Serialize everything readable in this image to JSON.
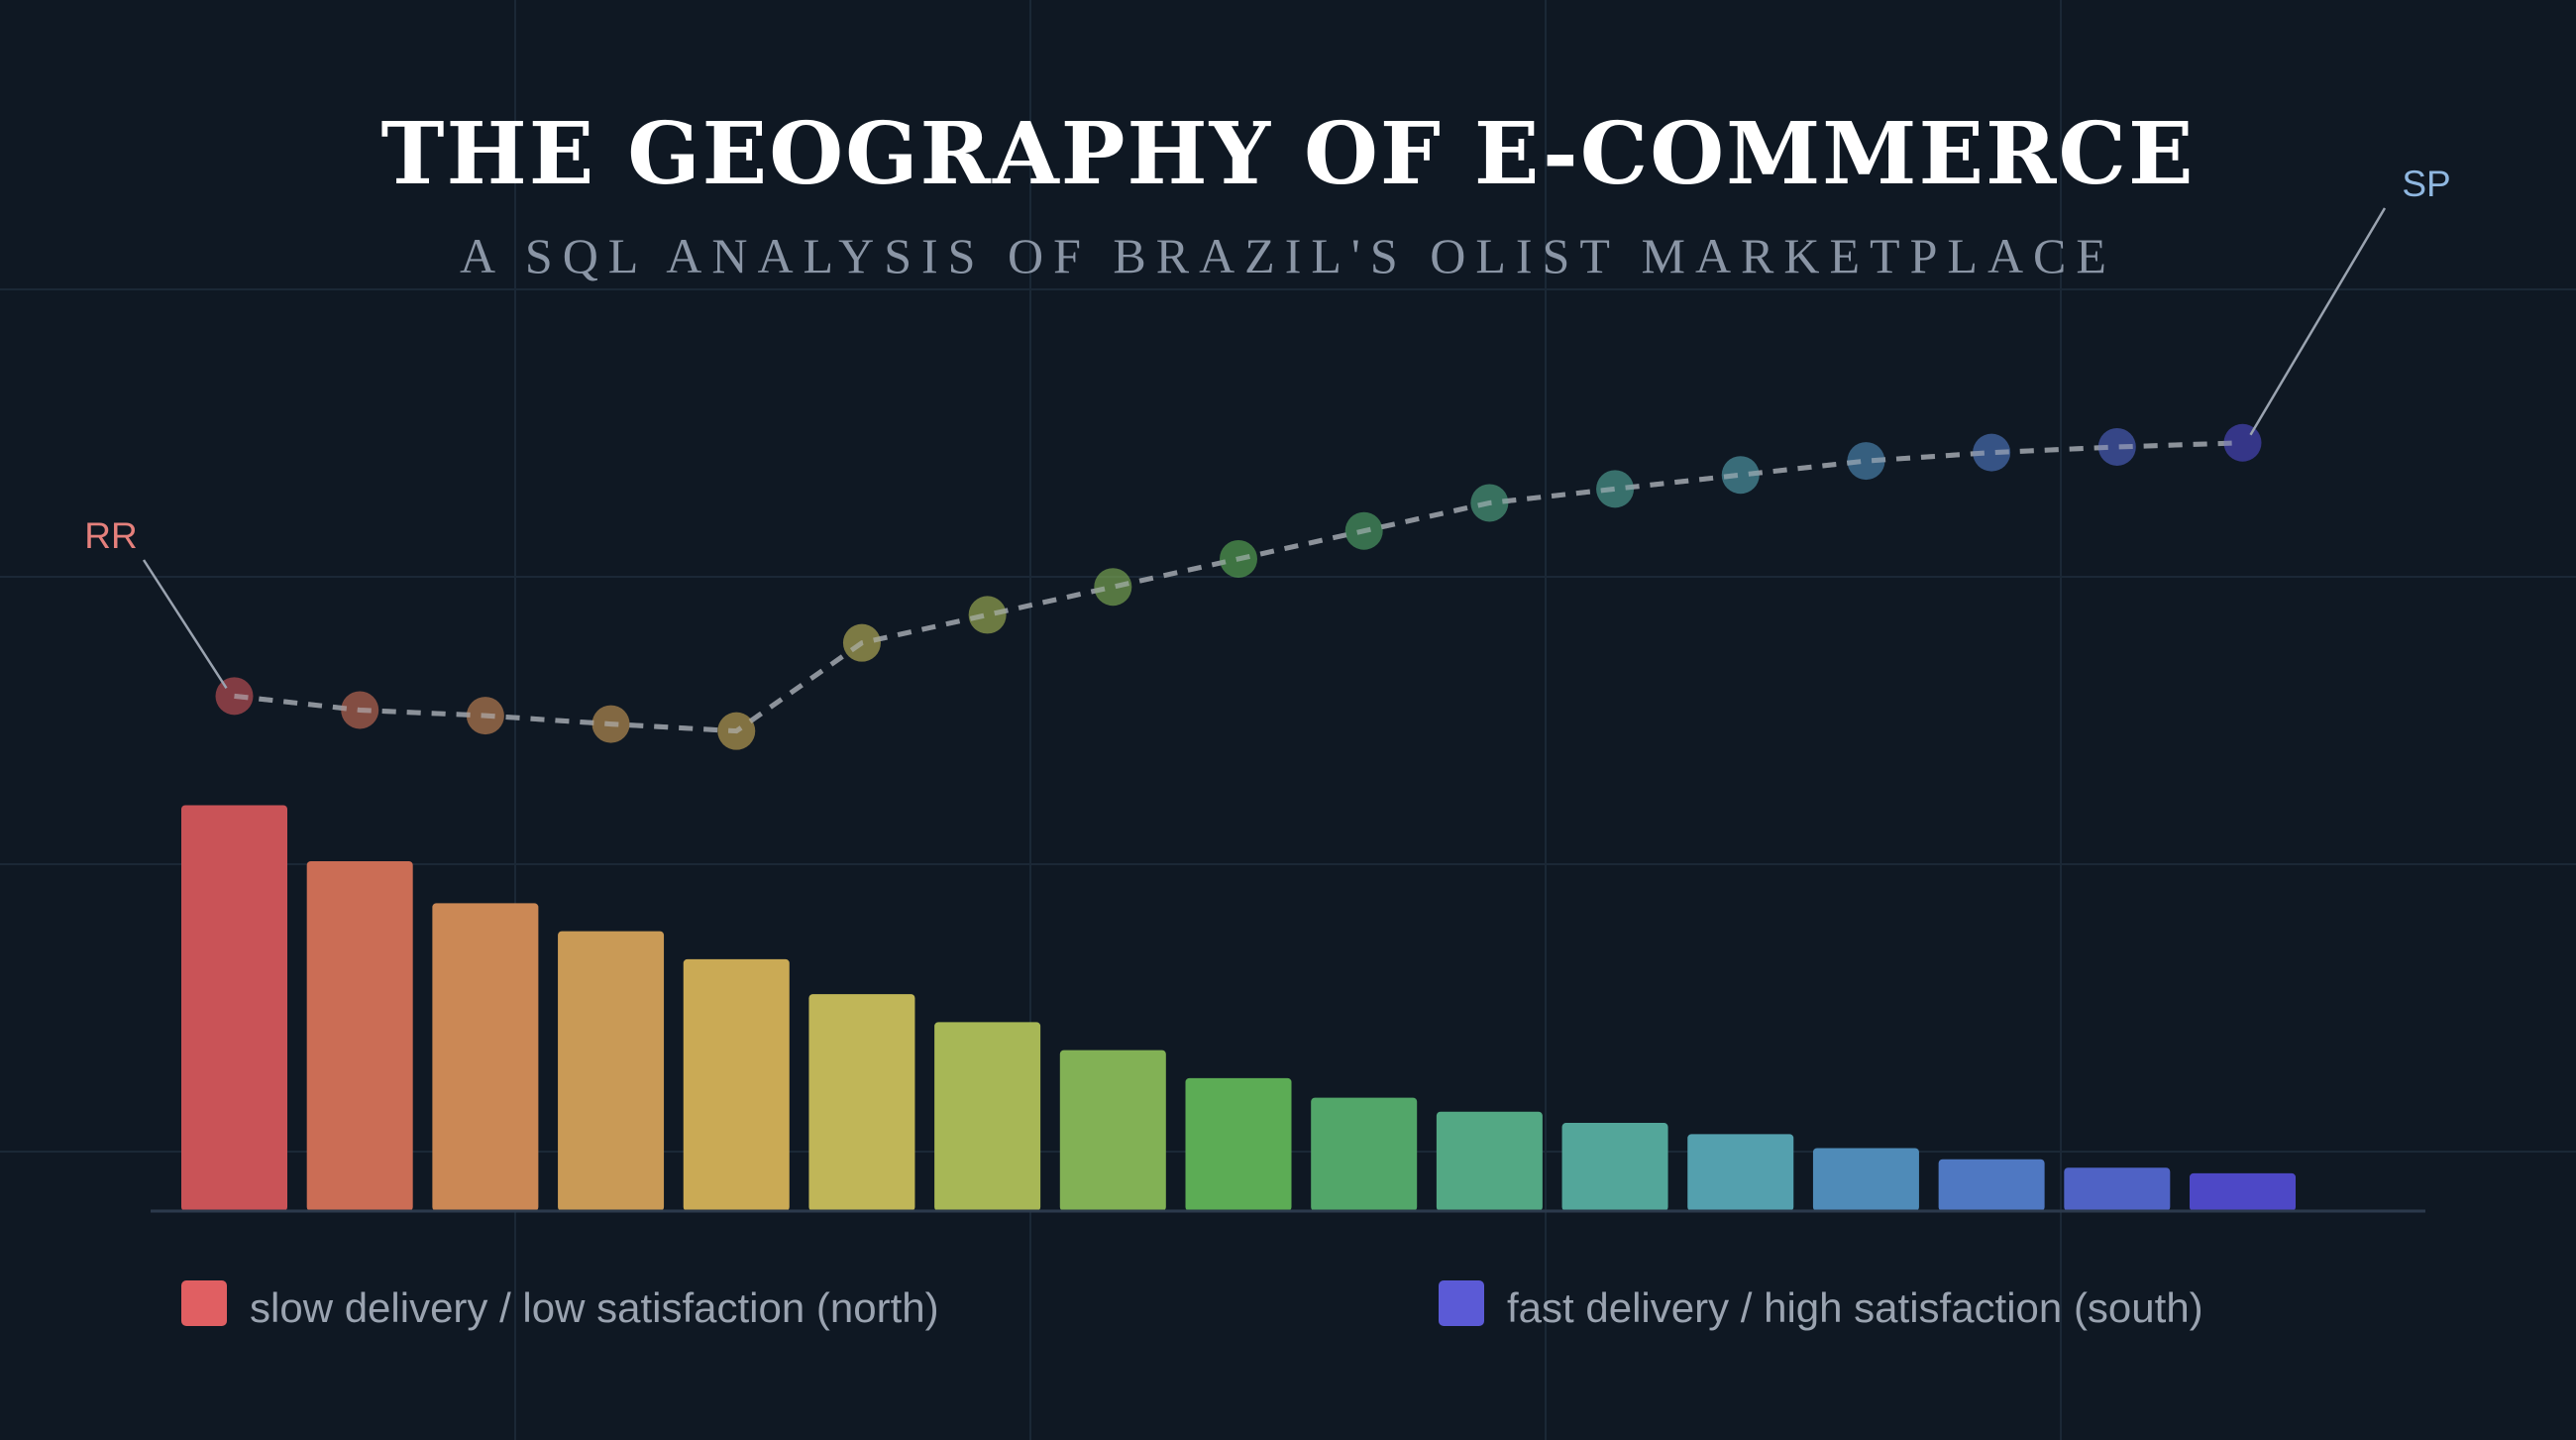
{
  "chart_data": {
    "type": "bar",
    "title": "THE GEOGRAPHY OF E-COMMERCE",
    "subtitle": "A SQL ANALYSIS OF BRAZIL'S OLIST MARKETPLACE",
    "categories": [
      "RR",
      "",
      "",
      "",
      "",
      "",
      "",
      "",
      "",
      "",
      "",
      "",
      "",
      "",
      "",
      "",
      "SP"
    ],
    "series": [
      {
        "kind": "bar",
        "values": [
          29.0,
          25.0,
          22.0,
          20.0,
          18.0,
          15.5,
          13.5,
          11.5,
          9.5,
          8.1,
          7.1,
          6.3,
          5.5,
          4.5,
          3.7,
          3.1,
          2.7
        ]
      },
      {
        "kind": "line",
        "style": "dashed",
        "values": [
          36.8,
          35.8,
          35.4,
          34.8,
          34.3,
          40.6,
          42.6,
          44.6,
          46.6,
          48.6,
          50.6,
          51.6,
          52.6,
          53.6,
          54.2,
          54.6,
          54.9
        ]
      }
    ],
    "colors": [
      "#c95357",
      "#cb6d55",
      "#cb8855",
      "#c99a56",
      "#caaa55",
      "#c0b658",
      "#a7b756",
      "#82b155",
      "#5cac55",
      "#52a669",
      "#53a884",
      "#53a69a",
      "#54a0ae",
      "#4f8bb8",
      "#4f78c2",
      "#4f62c5",
      "#4d48c6"
    ],
    "callouts": [
      {
        "label": "RR",
        "color": "#e5807c"
      },
      {
        "label": "SP",
        "color": "#8fb7e0"
      }
    ],
    "ylim": [
      0,
      66
    ],
    "grid": true,
    "legend": [
      {
        "label": "slow delivery / low satisfaction (north)",
        "color": "#e05f62"
      },
      {
        "label": "fast delivery / high satisfaction (south)",
        "color": "#5b5ad6"
      }
    ],
    "legend_position": "bottom"
  }
}
